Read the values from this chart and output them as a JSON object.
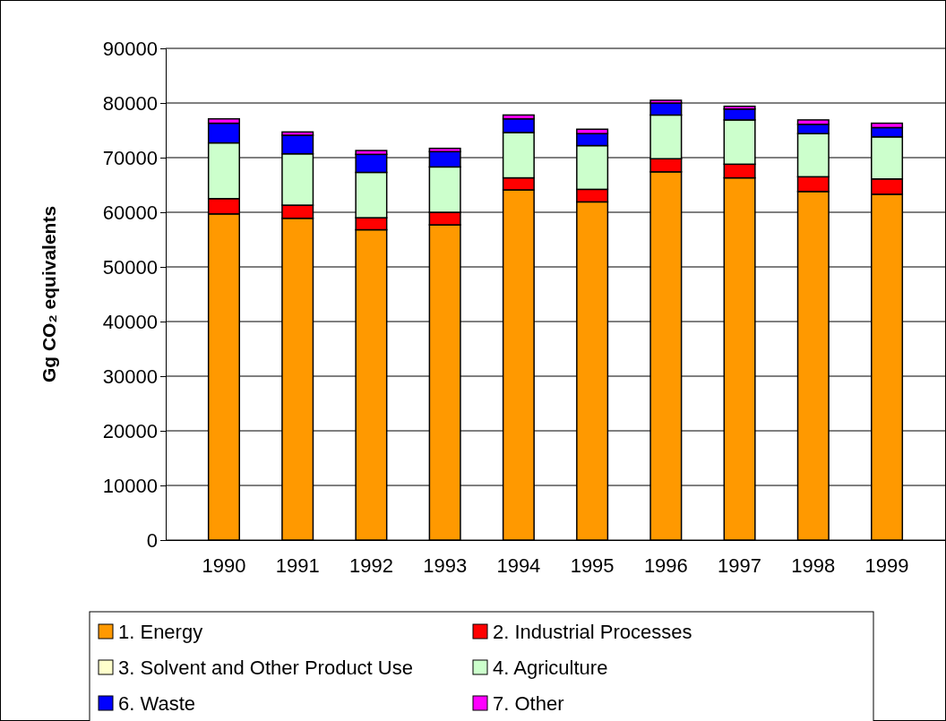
{
  "chart_data": {
    "type": "bar",
    "stacked": true,
    "ylabel": "Gg CO₂ equivalents",
    "categories": [
      "1990",
      "1991",
      "1992",
      "1993",
      "1994",
      "1995",
      "1996",
      "1997",
      "1998",
      "1999"
    ],
    "series": [
      {
        "name": "1.  Energy",
        "color": "#ff9900",
        "values": [
          59700,
          58900,
          56800,
          57700,
          64100,
          61900,
          67400,
          66300,
          63800,
          63300
        ]
      },
      {
        "name": "2.  Industrial Processes",
        "color": "#ff0000",
        "values": [
          2800,
          2400,
          2200,
          2300,
          2200,
          2300,
          2400,
          2500,
          2700,
          2800
        ]
      },
      {
        "name": "3.  Solvent and Other Product Use",
        "color": "#ffffcc",
        "values": [
          null,
          null,
          null,
          null,
          null,
          null,
          null,
          null,
          null,
          null
        ]
      },
      {
        "name": "4.  Agriculture",
        "color": "#ccffcc",
        "values": [
          10200,
          9400,
          8300,
          8300,
          8300,
          8000,
          8000,
          8100,
          7900,
          7700
        ]
      },
      {
        "name": "6.  Waste",
        "color": "#0000ff",
        "values": [
          3600,
          3400,
          3300,
          2800,
          2500,
          2200,
          2200,
          2000,
          1700,
          1700
        ]
      },
      {
        "name": "7.  Other",
        "color": "#ff00ff",
        "values": [
          800,
          600,
          700,
          600,
          700,
          800,
          500,
          500,
          800,
          800
        ]
      }
    ],
    "ylim": [
      0,
      90000
    ],
    "yticks": [
      0,
      10000,
      20000,
      30000,
      40000,
      50000,
      60000,
      70000,
      80000,
      90000
    ],
    "grid": "y",
    "legend": "bottom"
  }
}
